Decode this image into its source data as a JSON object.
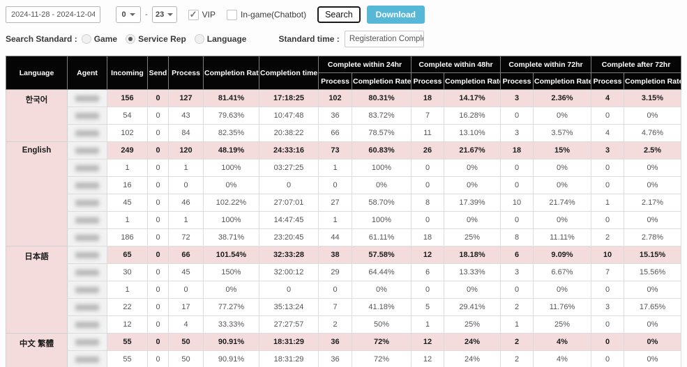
{
  "filters": {
    "date_range": "2024-11-28 - 2024-12-04",
    "hour_from": "0",
    "hour_to": "23",
    "range_dash": "-",
    "vip_label": "VIP",
    "vip_checked": true,
    "ingame_label": "In-game(Chatbot)",
    "ingame_checked": false,
    "search_label": "Search",
    "download_label": "Download",
    "search_standard_label": "Search Standard :",
    "standard_options": [
      "Game",
      "Service Rep",
      "Language"
    ],
    "standard_selected": "Service Rep",
    "standard_time_label": "Standard time :",
    "standard_time_value": "Registeration Complete ~ Cor"
  },
  "colors": {
    "header_bg": "#050505",
    "summary_row_bg": "#f5dcdc",
    "label_column_bg": "#f2f2f2",
    "download_button": "#57b7d7"
  },
  "table": {
    "headers": {
      "language": "Language",
      "agent": "Agent",
      "incoming": "Incoming",
      "send": "Send",
      "process": "Process",
      "completion_rate": "Completion Rate",
      "completion_time": "Completion time",
      "group_24": "Complete within 24hr",
      "group_48": "Complete within 48hr",
      "group_72": "Complete within 72hr",
      "group_after72": "Complete after 72hr",
      "sub_process": "Process",
      "sub_rate": "Completion Rate"
    },
    "col_keys": [
      "incoming",
      "send",
      "process",
      "completion_rate",
      "completion_time",
      "p24_process",
      "p24_rate",
      "p48_process",
      "p48_rate",
      "p72_process",
      "p72_rate",
      "after72_process",
      "after72_rate"
    ],
    "groups": [
      {
        "language": "한국어",
        "rows": [
          {
            "summary": true,
            "cells": [
              "156",
              "0",
              "127",
              "81.41%",
              "17:18:25",
              "102",
              "80.31%",
              "18",
              "14.17%",
              "3",
              "2.36%",
              "4",
              "3.15%"
            ]
          },
          {
            "summary": false,
            "cells": [
              "54",
              "0",
              "43",
              "79.63%",
              "10:47:48",
              "36",
              "83.72%",
              "7",
              "16.28%",
              "0",
              "0%",
              "0",
              "0%"
            ]
          },
          {
            "summary": false,
            "cells": [
              "102",
              "0",
              "84",
              "82.35%",
              "20:38:22",
              "66",
              "78.57%",
              "11",
              "13.10%",
              "3",
              "3.57%",
              "4",
              "4.76%"
            ]
          }
        ]
      },
      {
        "language": "English",
        "rows": [
          {
            "summary": true,
            "cells": [
              "249",
              "0",
              "120",
              "48.19%",
              "24:33:16",
              "73",
              "60.83%",
              "26",
              "21.67%",
              "18",
              "15%",
              "3",
              "2.5%"
            ]
          },
          {
            "summary": false,
            "cells": [
              "1",
              "0",
              "1",
              "100%",
              "03:27:25",
              "1",
              "100%",
              "0",
              "0%",
              "0",
              "0%",
              "0",
              "0%"
            ]
          },
          {
            "summary": false,
            "cells": [
              "16",
              "0",
              "0",
              "0%",
              "0",
              "0",
              "0%",
              "0",
              "0%",
              "0",
              "0%",
              "0",
              "0%"
            ]
          },
          {
            "summary": false,
            "cells": [
              "45",
              "0",
              "46",
              "102.22%",
              "27:07:01",
              "27",
              "58.70%",
              "8",
              "17.39%",
              "10",
              "21.74%",
              "1",
              "2.17%"
            ]
          },
          {
            "summary": false,
            "cells": [
              "1",
              "0",
              "1",
              "100%",
              "14:47:45",
              "1",
              "100%",
              "0",
              "0%",
              "0",
              "0%",
              "0",
              "0%"
            ]
          },
          {
            "summary": false,
            "cells": [
              "186",
              "0",
              "72",
              "38.71%",
              "23:20:45",
              "44",
              "61.11%",
              "18",
              "25%",
              "8",
              "11.11%",
              "2",
              "2.78%"
            ]
          }
        ]
      },
      {
        "language": "日本語",
        "rows": [
          {
            "summary": true,
            "cells": [
              "65",
              "0",
              "66",
              "101.54%",
              "32:33:28",
              "38",
              "57.58%",
              "12",
              "18.18%",
              "6",
              "9.09%",
              "10",
              "15.15%"
            ]
          },
          {
            "summary": false,
            "cells": [
              "30",
              "0",
              "45",
              "150%",
              "32:00:12",
              "29",
              "64.44%",
              "6",
              "13.33%",
              "3",
              "6.67%",
              "7",
              "15.56%"
            ]
          },
          {
            "summary": false,
            "cells": [
              "1",
              "0",
              "0",
              "0%",
              "0",
              "0",
              "0%",
              "0",
              "0%",
              "0",
              "0%",
              "0",
              "0%"
            ]
          },
          {
            "summary": false,
            "cells": [
              "22",
              "0",
              "17",
              "77.27%",
              "35:13:24",
              "7",
              "41.18%",
              "5",
              "29.41%",
              "2",
              "11.76%",
              "3",
              "17.65%"
            ]
          },
          {
            "summary": false,
            "cells": [
              "12",
              "0",
              "4",
              "33.33%",
              "27:27:57",
              "2",
              "50%",
              "1",
              "25%",
              "1",
              "25%",
              "0",
              "0%"
            ]
          }
        ]
      },
      {
        "language": "中文 繁體",
        "rows": [
          {
            "summary": true,
            "cells": [
              "55",
              "0",
              "50",
              "90.91%",
              "18:31:29",
              "36",
              "72%",
              "12",
              "24%",
              "2",
              "4%",
              "0",
              "0%"
            ]
          },
          {
            "summary": false,
            "cells": [
              "55",
              "0",
              "50",
              "90.91%",
              "18:31:29",
              "36",
              "72%",
              "12",
              "24%",
              "2",
              "4%",
              "0",
              "0%"
            ]
          }
        ]
      }
    ]
  }
}
